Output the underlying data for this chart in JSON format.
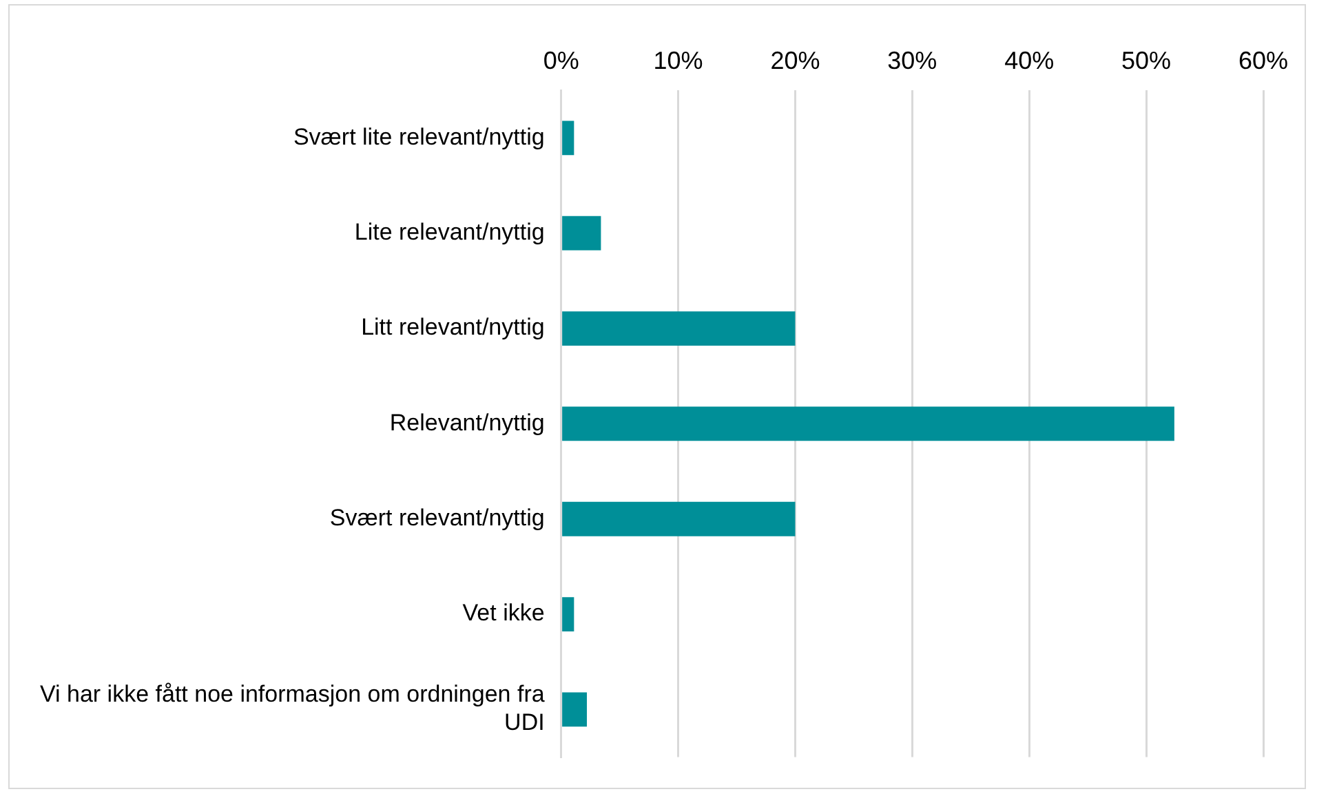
{
  "chart_data": {
    "type": "bar",
    "orientation": "horizontal",
    "categories": [
      "Svært lite relevant/nyttig",
      "Lite relevant/nyttig",
      "Litt relevant/nyttig",
      "Relevant/nyttig",
      "Svært relevant/nyttig",
      "Vet ikke",
      "Vi har ikke fått noe informasjon om ordningen fra UDI"
    ],
    "values": [
      1.1,
      3.4,
      20,
      52.4,
      20,
      1.1,
      2.2
    ],
    "color": "#008f98",
    "xlim": [
      0,
      60
    ],
    "xticks": [
      {
        "value": 0,
        "label": "0%"
      },
      {
        "value": 10,
        "label": "10%"
      },
      {
        "value": 20,
        "label": "20%"
      },
      {
        "value": 30,
        "label": "30%"
      },
      {
        "value": 40,
        "label": "40%"
      },
      {
        "value": 50,
        "label": "50%"
      },
      {
        "value": 60,
        "label": "60%"
      }
    ],
    "grid": "x"
  }
}
